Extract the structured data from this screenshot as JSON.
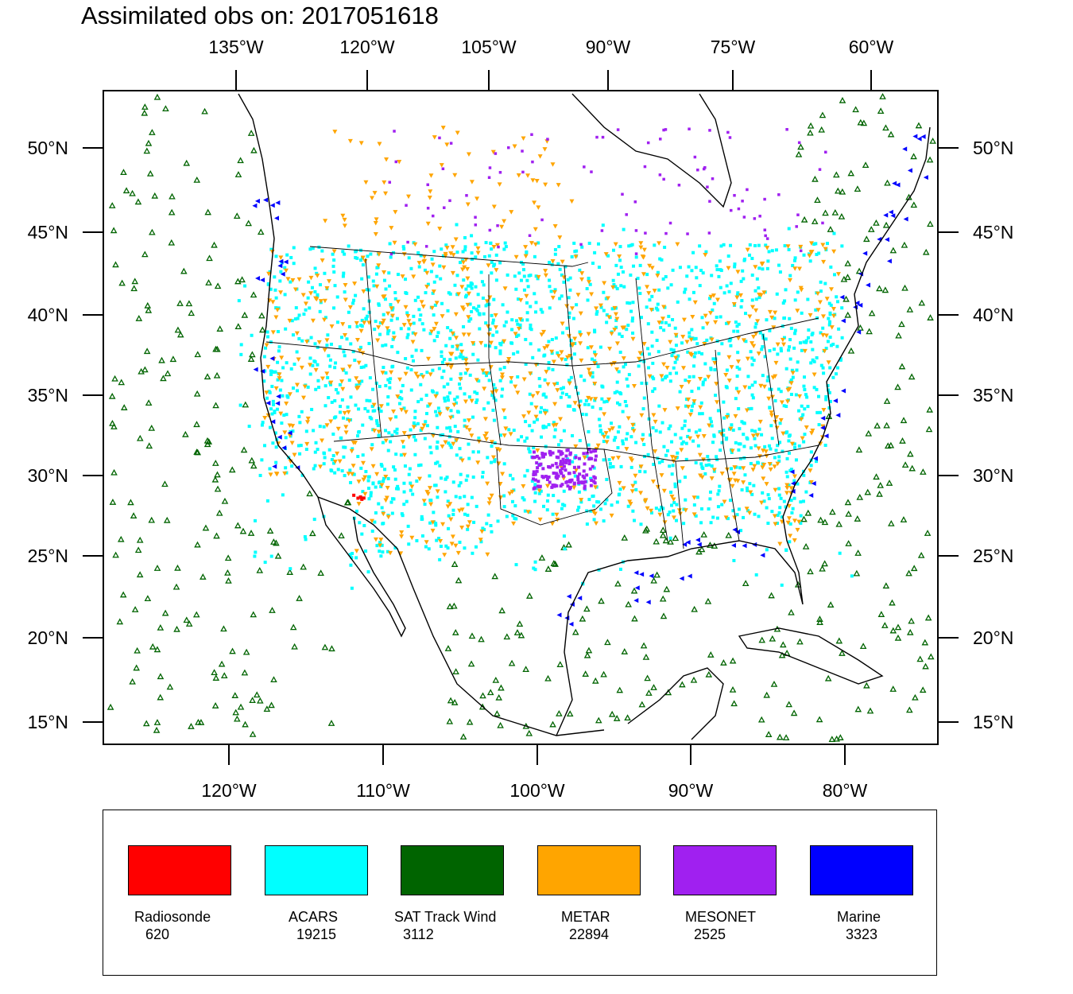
{
  "title": "Assimilated obs on: 2017051618",
  "axes": {
    "top_lon_labels": [
      "135°W",
      "120°W",
      "105°W",
      "90°W",
      "75°W",
      "60°W"
    ],
    "bottom_lon_labels": [
      "120°W",
      "110°W",
      "100°W",
      "90°W",
      "80°W"
    ],
    "lat_labels": [
      "50°N",
      "45°N",
      "40°N",
      "35°N",
      "30°N",
      "25°N",
      "20°N",
      "15°N"
    ]
  },
  "legend": [
    {
      "label": "Radiosonde",
      "count": "620",
      "color": "#ff0000"
    },
    {
      "label": "ACARS",
      "count": "19215",
      "color": "#00ffff"
    },
    {
      "label": "SAT Track Wind",
      "count": "3112",
      "color": "#006400"
    },
    {
      "label": "METAR",
      "count": "22894",
      "color": "#ffa500"
    },
    {
      "label": "MESONET",
      "count": "2525",
      "color": "#a020f0"
    },
    {
      "label": "Marine",
      "count": "3323",
      "color": "#0000ff"
    }
  ],
  "colors": {
    "radiosonde": "#ff0000",
    "acars": "#00ffff",
    "sat_track_wind": "#006400",
    "metar": "#ffa500",
    "mesonet": "#a020f0",
    "marine": "#0000ff",
    "coastline": "#000000"
  }
}
